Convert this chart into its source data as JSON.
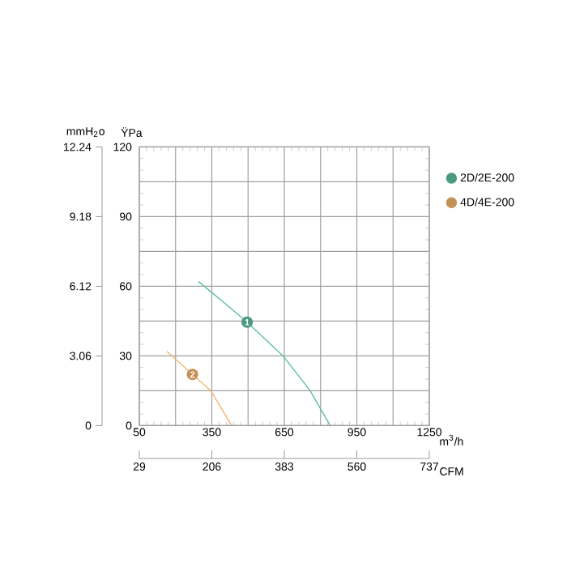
{
  "chart_data": {
    "type": "line",
    "xlabel": "m$^{3}$/h",
    "ylabel": "ŸPa",
    "y2label": "mmH$_{2}$o",
    "x2label": "CFM",
    "xlim": [
      50,
      1250
    ],
    "xticks": [
      50,
      {
        "value": 200,
        "label": null
      },
      350,
      {
        "value": 500,
        "label": null
      },
      650,
      {
        "value": 800,
        "label": null
      },
      950,
      {
        "value": 1100,
        "label": null
      },
      1250
    ],
    "ylim": [
      0,
      120
    ],
    "yticks": [
      0,
      {
        "value": 15,
        "label": null
      },
      30,
      {
        "value": 45,
        "label": null
      },
      60,
      {
        "value": 75,
        "label": null
      },
      90,
      {
        "value": 105,
        "label": null
      },
      120
    ],
    "y2lim": [
      0,
      12.24
    ],
    "y2ticks": [
      0,
      3.06,
      6.12,
      9.18,
      12.24
    ],
    "x2lim": [
      29,
      737
    ],
    "x2ticks": [
      29,
      206,
      383,
      560,
      737
    ],
    "series": [
      {
        "name": "2D/2E-200",
        "color": "#5cc09c",
        "x": [
          295,
          400,
          496,
          645,
          757,
          840
        ],
        "values": [
          62,
          53,
          44.5,
          30,
          15,
          0
        ]
      },
      {
        "name": "4D/4E-200",
        "color": "#f5b56a",
        "x": [
          164,
          270,
          346,
          432
        ],
        "values": [
          32,
          22,
          15,
          0
        ]
      }
    ],
    "annotations": [
      {
        "text": "1",
        "x": 496,
        "y": 44.5
      },
      {
        "text": "2",
        "x": 270,
        "y": 22
      }
    ],
    "grid": true,
    "legend": "top right",
    "marker": "none",
    "line_style": "solid"
  }
}
